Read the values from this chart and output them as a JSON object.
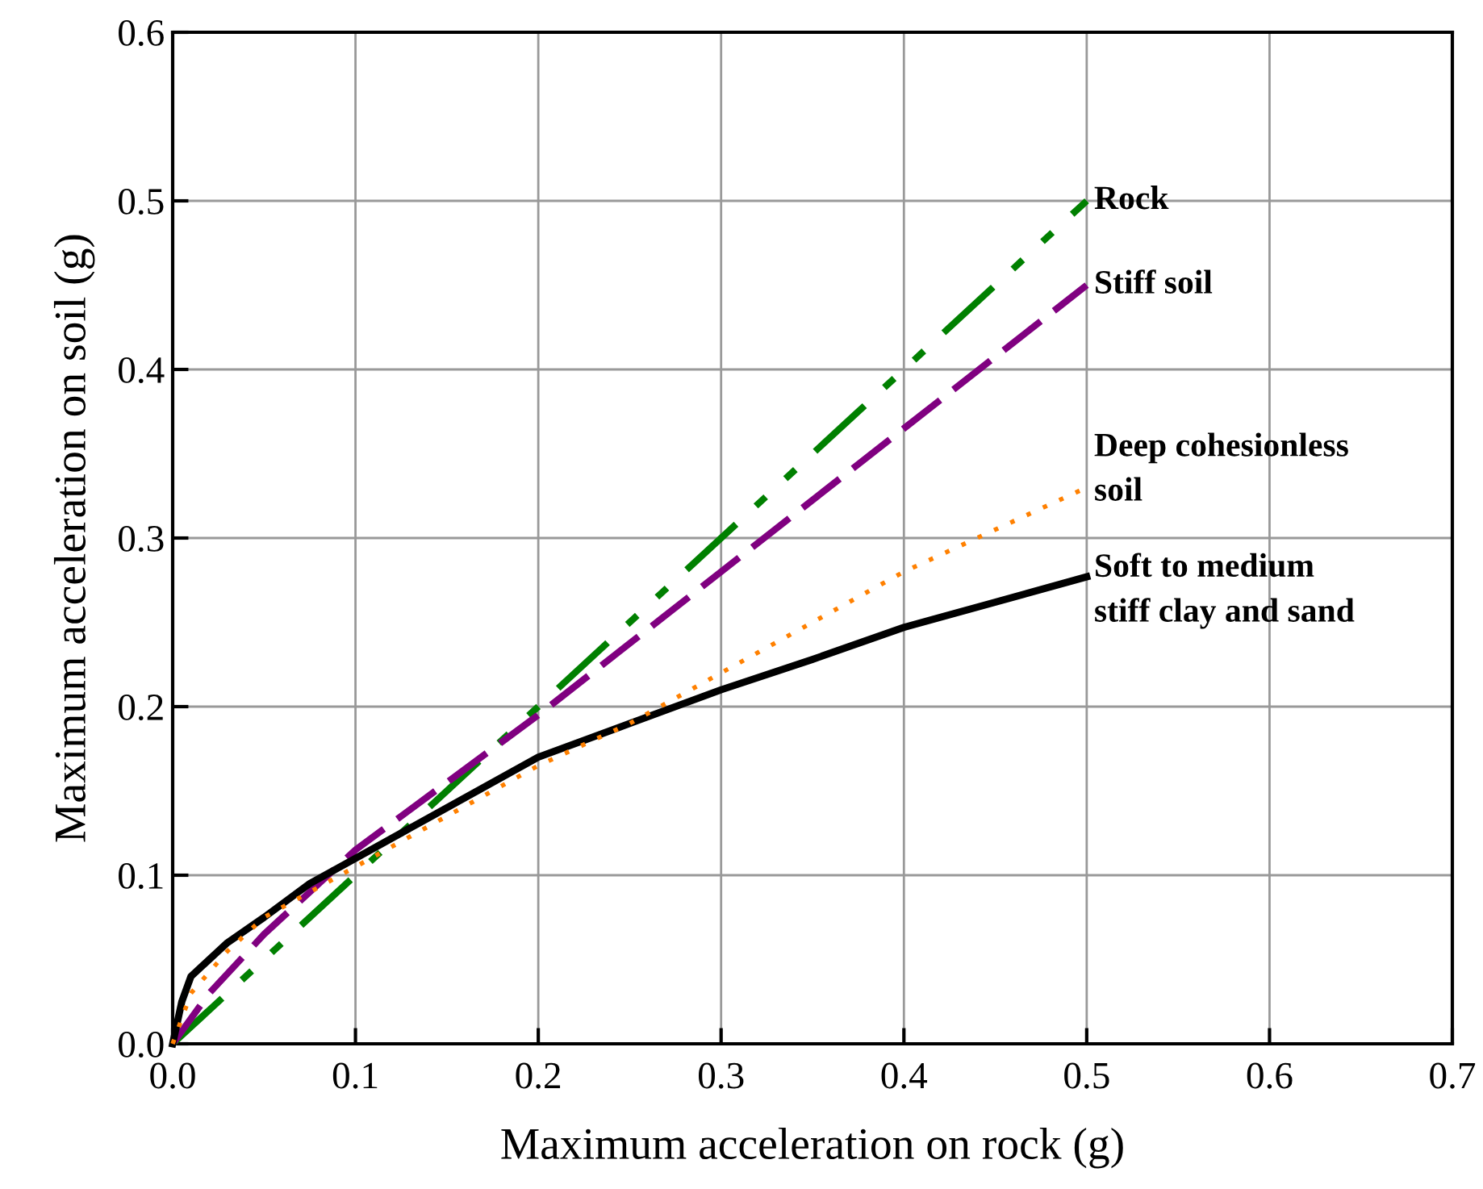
{
  "chart_data": {
    "type": "line",
    "xlabel": "Maximum acceleration on rock (g)",
    "ylabel": "Maximum acceleration on soil (g)",
    "xlim": [
      0,
      0.7
    ],
    "xticks": [
      {
        "value": 0,
        "label": "0.0"
      },
      0.1,
      0.2,
      0.3,
      0.4,
      0.5,
      0.6,
      0.7
    ],
    "ylim": [
      0,
      0.6
    ],
    "yticks": [
      {
        "value": 0,
        "label": "0.0"
      },
      0.1,
      0.2,
      0.3,
      0.4,
      0.5,
      0.6
    ],
    "grid": true,
    "legend": false,
    "series": [
      {
        "name": "Rock",
        "color": "#008000",
        "line_style": "dashdotdot",
        "x": [
          0,
          0.5
        ],
        "values": [
          0,
          0.5
        ]
      },
      {
        "name": "Stiff soil",
        "color": "#800080",
        "line_style": "dashed",
        "x": [
          0,
          0.02,
          0.05,
          0.1,
          0.15,
          0.2,
          0.3,
          0.4,
          0.5
        ],
        "values": [
          0,
          0.03,
          0.065,
          0.115,
          0.155,
          0.195,
          0.28,
          0.365,
          0.45
        ]
      },
      {
        "name": "Deep cohesionless\nsoil",
        "color": "#ff8000",
        "line_style": "dotted",
        "x": [
          0,
          0.01,
          0.03,
          0.05,
          0.1,
          0.15,
          0.2,
          0.25,
          0.3,
          0.35,
          0.4,
          0.45,
          0.5
        ],
        "values": [
          0,
          0.03,
          0.055,
          0.075,
          0.105,
          0.135,
          0.165,
          0.19,
          0.22,
          0.25,
          0.28,
          0.305,
          0.33
        ]
      },
      {
        "name": "Soft to medium\nstiff clay and sand",
        "color": "#000000",
        "line_style": "solid",
        "x": [
          0,
          0.005,
          0.01,
          0.02,
          0.03,
          0.05,
          0.075,
          0.1,
          0.15,
          0.2,
          0.25,
          0.3,
          0.35,
          0.4,
          0.45,
          0.5
        ],
        "values": [
          0,
          0.025,
          0.04,
          0.05,
          0.06,
          0.075,
          0.095,
          0.11,
          0.14,
          0.17,
          0.19,
          0.21,
          0.228,
          0.247,
          0.262,
          0.277
        ]
      }
    ]
  }
}
